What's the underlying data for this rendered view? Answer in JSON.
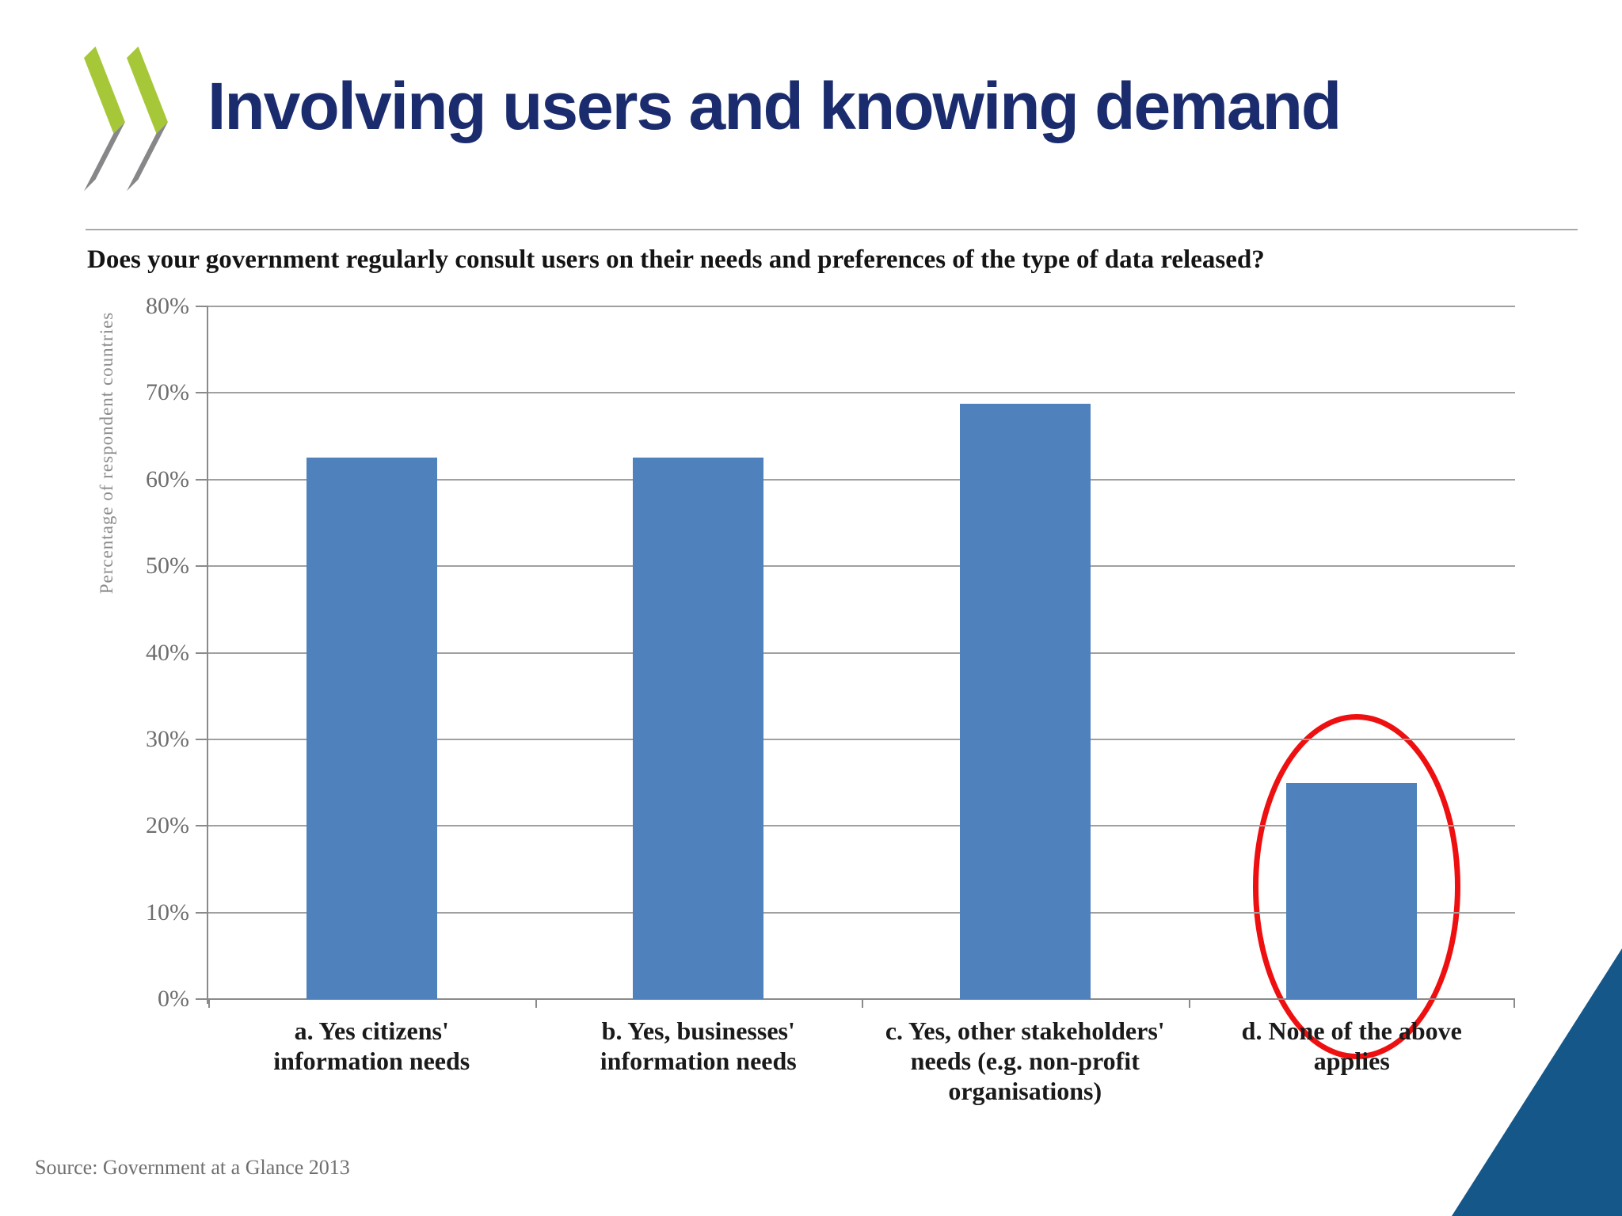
{
  "slide": {
    "title": "Involving users and knowing demand",
    "question": "Does your government regularly consult users on their needs and preferences of the type of data released?",
    "source": "Source: Government at a Glance 2013"
  },
  "logo": {
    "icon": "oecd-double-chevron-icon"
  },
  "colors": {
    "title_text": "#1b2c6e",
    "question_text": "#141414",
    "bar_fill": "#4f81bd",
    "gridline": "#a0a0a0",
    "axis_line": "#8a8a8a",
    "tick_text": "#6e6e6e",
    "category_text": "#1a1a1a",
    "source_text": "#6f6f6f",
    "highlight_red": "#ee1010",
    "corner_triangle": "#16578a",
    "logo_green": "#a6c838",
    "logo_gray": "#87878a"
  },
  "chart_data": {
    "type": "bar",
    "title": "Does your government regularly consult users on their needs and preferences of the type of data released?",
    "categories": [
      "a. Yes citizens' information needs",
      "b. Yes, businesses' information needs",
      "c. Yes, other stakeholders' needs (e.g. non-profit organisations)",
      "d. None of the above applies"
    ],
    "values": [
      62.5,
      62.5,
      68.8,
      25
    ],
    "xlabel": "",
    "ylabel": "Percentage of respondent countries",
    "ylim": [
      0,
      80
    ],
    "ytick_step": 10,
    "ytick_labels": [
      "0%",
      "10%",
      "20%",
      "30%",
      "40%",
      "50%",
      "60%",
      "70%",
      "80%"
    ],
    "grid": true,
    "legend": false,
    "annotation": {
      "shape": "ellipse",
      "category_index": 3,
      "color": "#ee1010"
    }
  }
}
